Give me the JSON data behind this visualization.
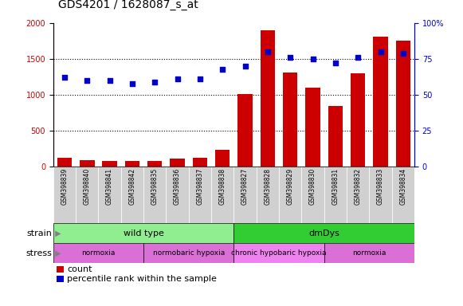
{
  "title": "GDS4201 / 1628087_s_at",
  "samples": [
    "GSM398839",
    "GSM398840",
    "GSM398841",
    "GSM398842",
    "GSM398835",
    "GSM398836",
    "GSM398837",
    "GSM398838",
    "GSM398827",
    "GSM398828",
    "GSM398829",
    "GSM398830",
    "GSM398831",
    "GSM398832",
    "GSM398833",
    "GSM398834"
  ],
  "counts": [
    120,
    95,
    80,
    85,
    85,
    110,
    130,
    240,
    1010,
    1900,
    1310,
    1100,
    840,
    1300,
    1810,
    1750
  ],
  "percentile": [
    62,
    60,
    60,
    58,
    59,
    61,
    61,
    68,
    70,
    80,
    76,
    75,
    72,
    76,
    80,
    79
  ],
  "ylim_left": [
    0,
    2000
  ],
  "ylim_right": [
    0,
    100
  ],
  "yticks_left": [
    0,
    500,
    1000,
    1500,
    2000
  ],
  "yticks_right": [
    0,
    25,
    50,
    75,
    100
  ],
  "bar_color": "#cc0000",
  "dot_color": "#0000cc",
  "strain_groups": [
    {
      "label": "wild type",
      "start": 0,
      "end": 8,
      "color": "#90ee90"
    },
    {
      "label": "dmDys",
      "start": 8,
      "end": 16,
      "color": "#32cd32"
    }
  ],
  "stress_groups": [
    {
      "label": "normoxia",
      "start": 0,
      "end": 4,
      "color": "#da70d6"
    },
    {
      "label": "normobaric hypoxia",
      "start": 4,
      "end": 8,
      "color": "#da70d6"
    },
    {
      "label": "chronic hypobaric hypoxia",
      "start": 8,
      "end": 12,
      "color": "#ee82ee"
    },
    {
      "label": "normoxia",
      "start": 12,
      "end": 16,
      "color": "#da70d6"
    }
  ],
  "left_axis_color": "#cc0000",
  "right_axis_color": "#0000cc",
  "title_fontsize": 10,
  "tick_fontsize": 7,
  "sample_fontsize": 5.5,
  "group_fontsize": 8,
  "stress_fontsize": 6.5,
  "legend_fontsize": 8,
  "legend_items": [
    "count",
    "percentile rank within the sample"
  ],
  "xtick_bg": "#d0d0d0"
}
